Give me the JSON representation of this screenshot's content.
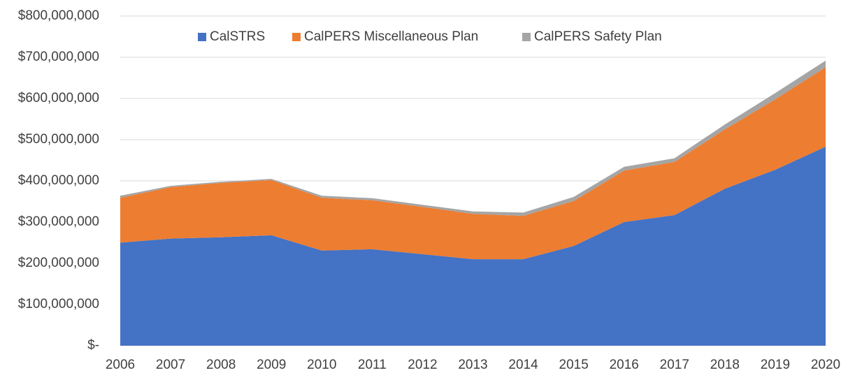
{
  "chart_data": {
    "type": "stacked_area",
    "categories": [
      "2006",
      "2007",
      "2008",
      "2009",
      "2010",
      "2011",
      "2012",
      "2013",
      "2014",
      "2015",
      "2016",
      "2017",
      "2018",
      "2019",
      "2020"
    ],
    "series": [
      {
        "name": "CalSTRS",
        "color": "#4472c4",
        "values": [
          250000000,
          260000000,
          263000000,
          268000000,
          231000000,
          234000000,
          222000000,
          210000000,
          210000000,
          242000000,
          300000000,
          317000000,
          381000000,
          427000000,
          483000000
        ]
      },
      {
        "name": "CalPERS Miscellaneous Plan",
        "color": "#ed7d31",
        "values": [
          109000000,
          125000000,
          132000000,
          134000000,
          128000000,
          119000000,
          115000000,
          110000000,
          105000000,
          109000000,
          125000000,
          129000000,
          144000000,
          171000000,
          193000000
        ]
      },
      {
        "name": "CalPERS Safety Plan",
        "color": "#a5a5a5",
        "values": [
          5000000,
          3000000,
          3000000,
          3000000,
          5000000,
          5000000,
          5000000,
          6000000,
          8000000,
          10000000,
          9000000,
          9000000,
          12000000,
          15000000,
          16000000
        ]
      }
    ],
    "ylim": [
      0,
      800000000
    ],
    "yticks": [
      {
        "value": 0,
        "label": "$-"
      },
      {
        "value": 100000000,
        "label": "$100,000,000"
      },
      {
        "value": 200000000,
        "label": "$200,000,000"
      },
      {
        "value": 300000000,
        "label": "$300,000,000"
      },
      {
        "value": 400000000,
        "label": "$400,000,000"
      },
      {
        "value": 500000000,
        "label": "$500,000,000"
      },
      {
        "value": 600000000,
        "label": "$600,000,000"
      },
      {
        "value": 700000000,
        "label": "$700,000,000"
      },
      {
        "value": 800000000,
        "label": "$800,000,000"
      }
    ],
    "grid": true,
    "legend": "top"
  }
}
